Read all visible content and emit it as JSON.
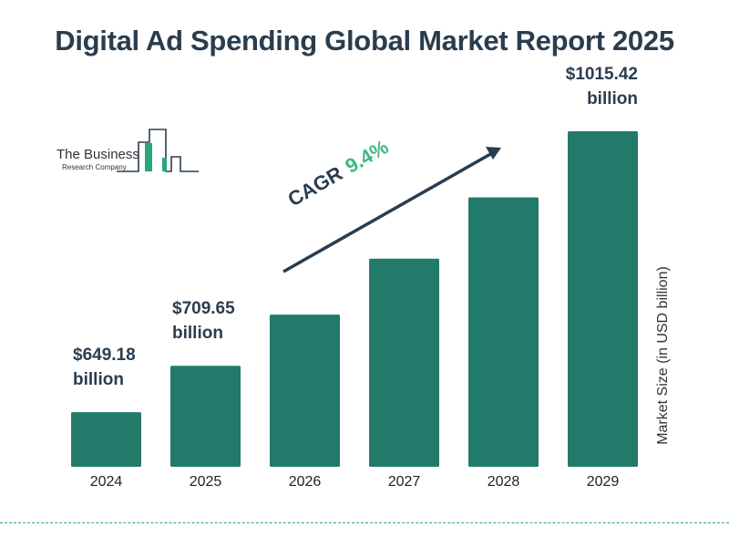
{
  "chart_data": {
    "type": "bar",
    "title": "Digital Ad Spending Global Market Report 2025",
    "categories": [
      "2024",
      "2025",
      "2026",
      "2027",
      "2028",
      "2029"
    ],
    "values": [
      649.18,
      709.65,
      776.4,
      849.3,
      929.2,
      1015.42
    ],
    "data_labels": {
      "2024": [
        "$649.18",
        "billion"
      ],
      "2025": [
        "$709.65",
        "billion"
      ],
      "2029": [
        "$1015.42",
        "billion"
      ]
    },
    "ylabel": "Market Size (in USD billion)",
    "xlabel": "",
    "annotation": {
      "label": "CAGR",
      "value": "9.4%"
    },
    "grid": false,
    "colors": {
      "bar": "#217a6a",
      "title": "#2a3d4f",
      "cagr_value": "#3db884",
      "divider": "#3a9a86"
    }
  },
  "logo": {
    "line1": "The Business",
    "line2": "Research Company"
  }
}
